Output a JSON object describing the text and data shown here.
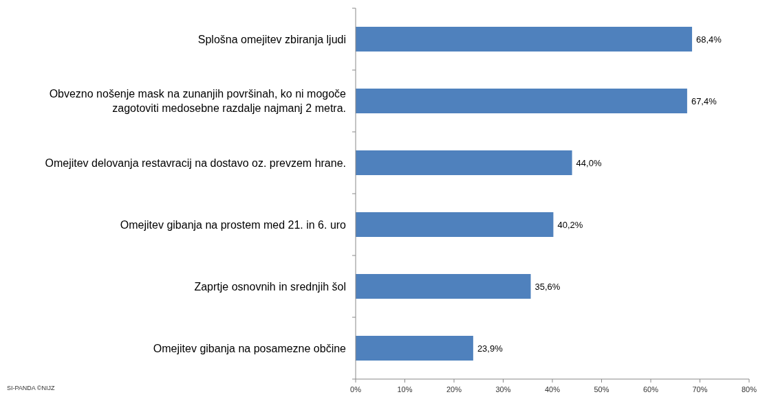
{
  "chart_data": {
    "type": "bar",
    "orientation": "horizontal",
    "categories": [
      "Splošna omejitev zbiranja ljudi",
      "Obvezno nošenje mask na zunanjih površinah, ko ni mogoče zagotoviti medosebne razdalje najmanj 2 metra.",
      "Omejitev delovanja restavracij na dostavo oz. prevzem hrane.",
      "Omejitev gibanja na prostem med 21. in 6. uro",
      "Zaprtje osnovnih in srednjih šol",
      "Omejitev gibanja na posamezne občine"
    ],
    "values": [
      68.4,
      67.4,
      44.0,
      40.2,
      35.6,
      23.9
    ],
    "value_labels": [
      "68,4%",
      "67,4%",
      "44,0%",
      "40,2%",
      "35,6%",
      "23,9%"
    ],
    "color": "#4f81bd",
    "xlim": [
      0,
      80
    ],
    "xticks": [
      {
        "value": 0,
        "label": "0%"
      },
      {
        "value": 10,
        "label": "10%"
      },
      {
        "value": 20,
        "label": "20%"
      },
      {
        "value": 30,
        "label": "30%"
      },
      {
        "value": 40,
        "label": "40%"
      },
      {
        "value": 50,
        "label": "50%"
      },
      {
        "value": 60,
        "label": "60%"
      },
      {
        "value": 70,
        "label": "70%"
      },
      {
        "value": 80,
        "label": "80%"
      }
    ],
    "grid": false,
    "annotations": [
      "SI-PANDA ©NIJZ"
    ]
  }
}
